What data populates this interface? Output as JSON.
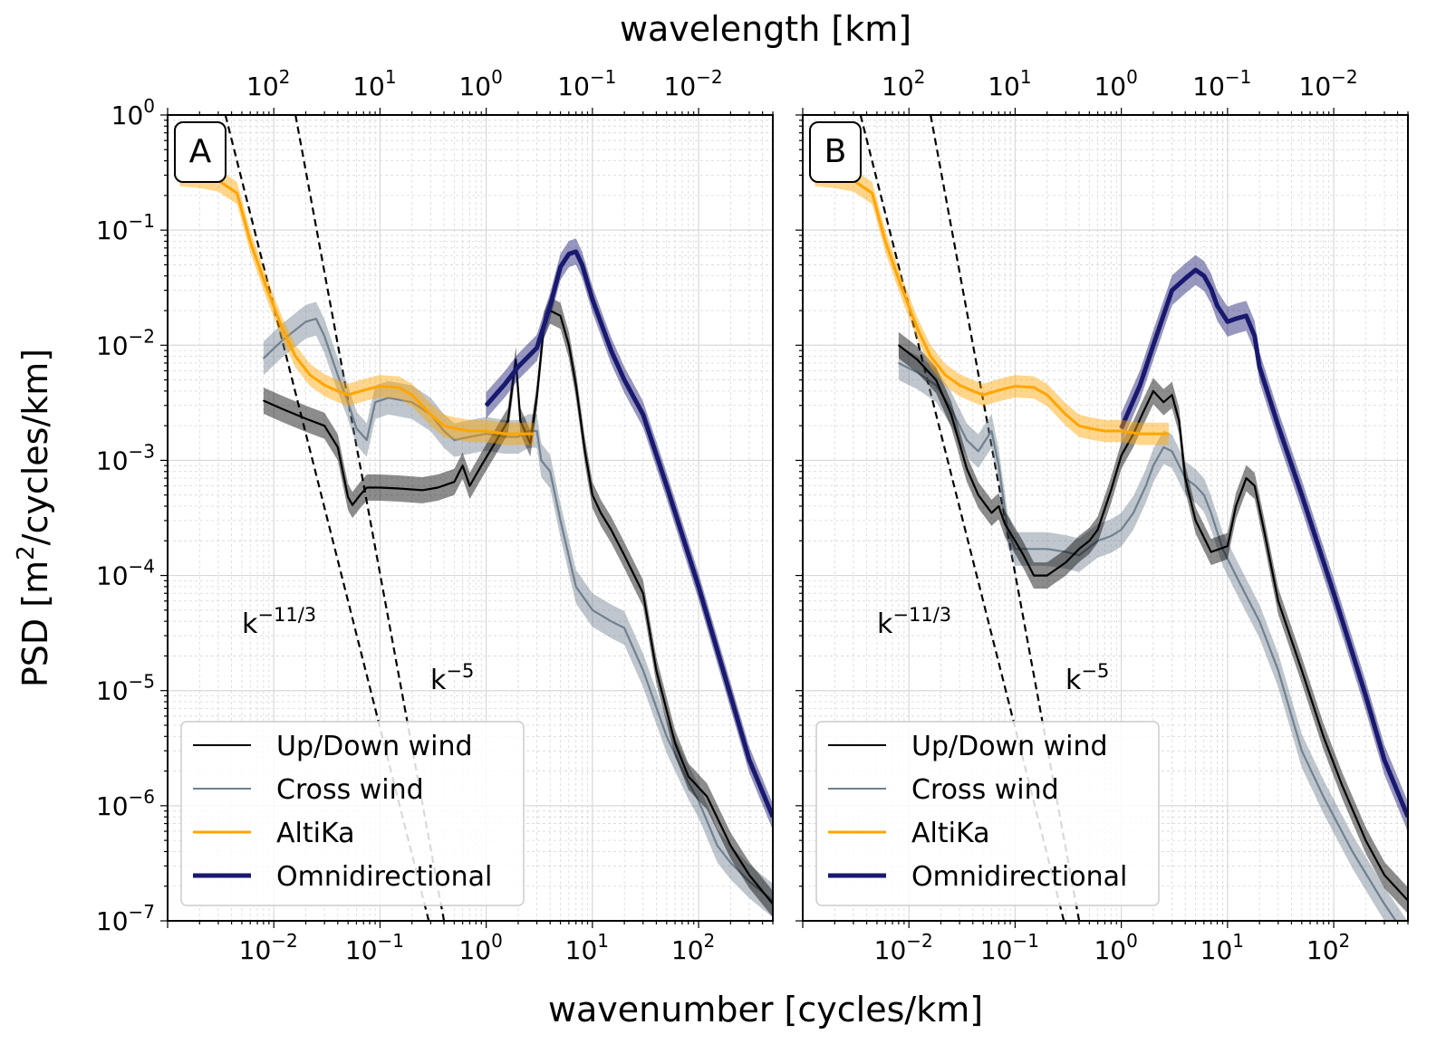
{
  "figure": {
    "top_xlabel": "wavelength [km]",
    "bottom_xlabel": "wavenumber [cycles/km]",
    "ylabel_main": "PSD [m",
    "ylabel_sup": "2",
    "ylabel_tail": "/cycles/km]"
  },
  "colors": {
    "updown": "#000000",
    "cross": "#708090",
    "altika": "#ffa500",
    "omni": "#191970",
    "grid": "#d3d3d3"
  },
  "legend": {
    "items": [
      {
        "label": "Up/Down wind",
        "color": "#000000",
        "width": 2
      },
      {
        "label": "Cross wind",
        "color": "#708090",
        "width": 2
      },
      {
        "label": "AltiKa",
        "color": "#ffa500",
        "width": 3
      },
      {
        "label": "Omnidirectional",
        "color": "#191970",
        "width": 5
      }
    ]
  },
  "annotations": {
    "k113_base": "k",
    "k113_exp": "−11/3",
    "k5_base": "k",
    "k5_exp": "−5"
  },
  "axes": {
    "x_bottom_ticks": [
      {
        "value": 0.01,
        "base": "10",
        "exp": "−2"
      },
      {
        "value": 0.1,
        "base": "10",
        "exp": "−1"
      },
      {
        "value": 1,
        "base": "10",
        "exp": "0"
      },
      {
        "value": 10,
        "base": "10",
        "exp": "1"
      },
      {
        "value": 100,
        "base": "10",
        "exp": "2"
      }
    ],
    "x_top_ticks": [
      {
        "value": 0.01,
        "base": "10",
        "exp": "2"
      },
      {
        "value": 0.1,
        "base": "10",
        "exp": "1"
      },
      {
        "value": 1,
        "base": "10",
        "exp": "0"
      },
      {
        "value": 10,
        "base": "10",
        "exp": "−1"
      },
      {
        "value": 100,
        "base": "10",
        "exp": "−2"
      }
    ],
    "y_ticks": [
      {
        "value": 1,
        "base": "10",
        "exp": "0"
      },
      {
        "value": 0.1,
        "base": "10",
        "exp": "−1"
      },
      {
        "value": 0.01,
        "base": "10",
        "exp": "−2"
      },
      {
        "value": 0.001,
        "base": "10",
        "exp": "−3"
      },
      {
        "value": 0.0001,
        "base": "10",
        "exp": "−4"
      },
      {
        "value": 1e-05,
        "base": "10",
        "exp": "−5"
      },
      {
        "value": 1e-06,
        "base": "10",
        "exp": "−6"
      },
      {
        "value": 1e-07,
        "base": "10",
        "exp": "−7"
      }
    ]
  },
  "chart_data": [
    {
      "type": "line",
      "panel_label": "A",
      "x_scale": "log",
      "y_scale": "log",
      "xlim": [
        0.001,
        500
      ],
      "ylim": [
        1e-07,
        1
      ],
      "xlabel": "wavenumber [cycles/km]",
      "x2label": "wavelength [km]",
      "ylabel": "PSD [m²/cycles/km]",
      "grid": true,
      "legend_position": "bottom-left",
      "reference_lines": [
        {
          "label": "k^−11/3",
          "slope": -3.6667,
          "x": [
            0.0035,
            0.4
          ],
          "y": [
            1.0,
            3e-08
          ]
        },
        {
          "label": "k^−5",
          "slope": -5,
          "x": [
            0.016,
            0.42
          ],
          "y": [
            1.0,
            7.9e-08
          ]
        }
      ],
      "series": [
        {
          "name": "AltiKa",
          "x": [
            0.0013,
            0.002,
            0.003,
            0.0045,
            0.006,
            0.0085,
            0.012,
            0.016,
            0.022,
            0.03,
            0.04,
            0.05,
            0.06,
            0.08,
            0.1,
            0.15,
            0.2,
            0.3,
            0.4,
            0.5,
            0.7,
            1.0,
            1.5,
            2.0,
            2.8
          ],
          "y": [
            0.3,
            0.29,
            0.27,
            0.21,
            0.08,
            0.032,
            0.014,
            0.008,
            0.0055,
            0.0045,
            0.004,
            0.0037,
            0.0039,
            0.0042,
            0.0044,
            0.0043,
            0.0037,
            0.0025,
            0.002,
            0.0019,
            0.0018,
            0.0018,
            0.0017,
            0.0017,
            0.0017
          ],
          "band": 1.25
        },
        {
          "name": "Up/Down wind",
          "x": [
            0.008,
            0.012,
            0.02,
            0.03,
            0.04,
            0.05,
            0.055,
            0.065,
            0.075,
            0.1,
            0.15,
            0.25,
            0.35,
            0.5,
            0.6,
            0.7,
            0.9,
            1.2,
            1.6,
            1.9,
            2.1,
            2.6,
            3.0,
            3.5,
            4.0,
            5.0,
            6.0,
            7.0,
            8.5,
            10,
            12,
            15,
            20,
            30,
            40,
            60,
            80,
            120,
            200,
            300,
            500
          ],
          "y": [
            0.0033,
            0.0028,
            0.0023,
            0.002,
            0.0013,
            0.00048,
            0.00041,
            0.0005,
            0.00058,
            0.00058,
            0.00057,
            0.00055,
            0.00058,
            0.00065,
            0.0009,
            0.0006,
            0.0009,
            0.0014,
            0.0022,
            0.0075,
            0.0022,
            0.0014,
            0.0036,
            0.015,
            0.02,
            0.018,
            0.01,
            0.0045,
            0.0012,
            0.0005,
            0.00035,
            0.00025,
            0.00015,
            7e-05,
            1.5e-05,
            3.5e-06,
            1.8e-06,
            1.2e-06,
            4.5e-07,
            2.5e-07,
            1.4e-07
          ],
          "band": 1.3
        },
        {
          "name": "Cross wind",
          "x": [
            0.008,
            0.012,
            0.02,
            0.025,
            0.03,
            0.04,
            0.05,
            0.06,
            0.075,
            0.09,
            0.12,
            0.2,
            0.3,
            0.4,
            0.5,
            0.7,
            1.0,
            1.5,
            2.0,
            2.5,
            3.0,
            3.3,
            4.0,
            5.0,
            7,
            10,
            15,
            20,
            30,
            50,
            80,
            100,
            150,
            200,
            300,
            500
          ],
          "y": [
            0.0077,
            0.011,
            0.016,
            0.017,
            0.012,
            0.0055,
            0.0032,
            0.0019,
            0.0015,
            0.0032,
            0.0035,
            0.0032,
            0.0025,
            0.0018,
            0.0015,
            0.0016,
            0.0017,
            0.0016,
            0.0016,
            0.0018,
            0.0018,
            0.001,
            0.0008,
            0.0003,
            8e-05,
            5e-05,
            4e-05,
            3.5e-05,
            1.5e-05,
            4e-06,
            1.6e-06,
            1.1e-06,
            4.5e-07,
            3.2e-07,
            2.2e-07,
            1.5e-07
          ],
          "band": 1.4
        },
        {
          "name": "Omnidirectional",
          "x": [
            1.0,
            1.5,
            2.0,
            3.0,
            4.0,
            5.0,
            6.0,
            7.0,
            8.0,
            10,
            15,
            20,
            30,
            50,
            100,
            200,
            300,
            500
          ],
          "y": [
            0.003,
            0.0046,
            0.0065,
            0.0095,
            0.022,
            0.048,
            0.062,
            0.065,
            0.05,
            0.025,
            0.009,
            0.005,
            0.0025,
            0.0006,
            8e-05,
            9e-06,
            2.5e-06,
            8e-07
          ],
          "band": 1.3
        }
      ]
    },
    {
      "type": "line",
      "panel_label": "B",
      "x_scale": "log",
      "y_scale": "log",
      "xlim": [
        0.001,
        500
      ],
      "ylim": [
        1e-07,
        1
      ],
      "xlabel": "wavenumber [cycles/km]",
      "x2label": "wavelength [km]",
      "ylabel": "PSD [m²/cycles/km]",
      "grid": true,
      "legend_position": "bottom-left",
      "reference_lines": [
        {
          "label": "k^−11/3",
          "slope": -3.6667,
          "x": [
            0.0035,
            0.4
          ],
          "y": [
            1.0,
            3e-08
          ]
        },
        {
          "label": "k^−5",
          "slope": -5,
          "x": [
            0.016,
            0.42
          ],
          "y": [
            1.0,
            7.9e-08
          ]
        }
      ],
      "series": [
        {
          "name": "AltiKa",
          "x": [
            0.0013,
            0.002,
            0.003,
            0.0045,
            0.006,
            0.0085,
            0.012,
            0.016,
            0.022,
            0.03,
            0.04,
            0.05,
            0.06,
            0.08,
            0.1,
            0.15,
            0.2,
            0.3,
            0.4,
            0.5,
            0.7,
            1.0,
            1.5,
            2.0,
            2.8
          ],
          "y": [
            0.3,
            0.29,
            0.27,
            0.21,
            0.08,
            0.032,
            0.014,
            0.008,
            0.0055,
            0.0045,
            0.004,
            0.0037,
            0.0039,
            0.0042,
            0.0044,
            0.0043,
            0.0037,
            0.0025,
            0.002,
            0.0019,
            0.0018,
            0.0018,
            0.0017,
            0.0017,
            0.0017
          ],
          "band": 1.25
        },
        {
          "name": "Up/Down wind",
          "x": [
            0.008,
            0.012,
            0.018,
            0.025,
            0.035,
            0.045,
            0.06,
            0.07,
            0.08,
            0.1,
            0.12,
            0.15,
            0.2,
            0.3,
            0.4,
            0.5,
            0.6,
            0.8,
            1.0,
            1.3,
            1.6,
            2.0,
            2.5,
            3.0,
            3.5,
            4.0,
            5.0,
            7.0,
            10,
            12,
            15,
            18,
            22,
            30,
            50,
            80,
            120,
            200,
            300,
            500
          ],
          "y": [
            0.01,
            0.0075,
            0.005,
            0.0025,
            0.00085,
            0.0005,
            0.00035,
            0.0004,
            0.00028,
            0.0002,
            0.00015,
            0.0001,
            0.0001,
            0.00013,
            0.00017,
            0.0002,
            0.00025,
            0.00055,
            0.0011,
            0.0017,
            0.0026,
            0.004,
            0.0032,
            0.0037,
            0.0022,
            0.0007,
            0.0003,
            0.00016,
            0.00018,
            0.0004,
            0.0007,
            0.0006,
            0.00025,
            6e-05,
            1.5e-05,
            4e-06,
            1.5e-06,
            5e-07,
            2.5e-07,
            1.5e-07
          ],
          "band": 1.3
        },
        {
          "name": "Cross wind",
          "x": [
            0.008,
            0.012,
            0.018,
            0.025,
            0.035,
            0.045,
            0.06,
            0.07,
            0.085,
            0.1,
            0.15,
            0.2,
            0.3,
            0.4,
            0.6,
            0.8,
            1.0,
            1.3,
            1.7,
            2.0,
            2.5,
            3.0,
            3.5,
            4.0,
            5.0,
            6.0,
            7.0,
            9.0,
            12,
            20,
            30,
            50,
            80,
            150,
            300,
            500
          ],
          "y": [
            0.007,
            0.0058,
            0.0045,
            0.0028,
            0.0015,
            0.0012,
            0.0018,
            0.0009,
            0.00025,
            0.00017,
            0.00017,
            0.00017,
            0.00016,
            0.00015,
            0.0002,
            0.00022,
            0.00025,
            0.00035,
            0.0006,
            0.0009,
            0.0013,
            0.0012,
            0.0009,
            0.0007,
            0.0006,
            0.0005,
            0.00035,
            0.00017,
            0.0001,
            4e-05,
            1.5e-05,
            3e-06,
            1.2e-06,
            4e-07,
            1.4e-07,
            7e-08
          ],
          "band": 1.4
        },
        {
          "name": "Omnidirectional",
          "x": [
            1.0,
            1.5,
            2.0,
            3.0,
            4.0,
            5.0,
            6.0,
            7.0,
            8.0,
            10,
            12,
            15,
            18,
            20,
            30,
            50,
            100,
            200,
            300,
            500
          ],
          "y": [
            0.0019,
            0.0045,
            0.01,
            0.03,
            0.038,
            0.045,
            0.04,
            0.031,
            0.022,
            0.016,
            0.017,
            0.018,
            0.012,
            0.0065,
            0.002,
            0.0005,
            7e-05,
            9e-06,
            2.5e-06,
            8e-07
          ],
          "band": 1.35
        }
      ]
    }
  ]
}
